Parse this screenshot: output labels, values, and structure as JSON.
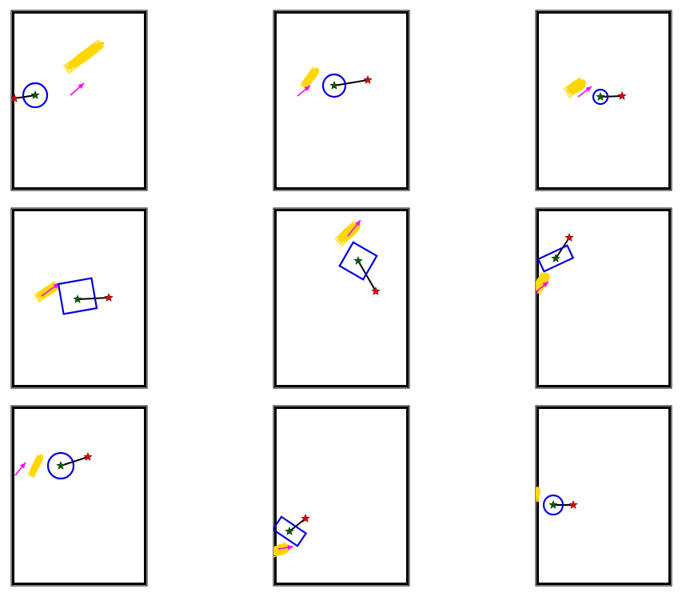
{
  "colors": {
    "frame": "#000000",
    "shape": "#0000dd",
    "link": "#000000",
    "center_star": "#0a5a0a",
    "target_star": "#dd0000",
    "arrow": "#ff00ff",
    "blob": "#ffd700"
  },
  "panels": [
    {
      "shape": "circle"
    },
    {
      "shape": "circle"
    },
    {
      "shape": "circle"
    },
    {
      "shape": "square"
    },
    {
      "shape": "square"
    },
    {
      "shape": "rectangle"
    },
    {
      "shape": "circle"
    },
    {
      "shape": "rectangle"
    },
    {
      "shape": "circle"
    }
  ]
}
